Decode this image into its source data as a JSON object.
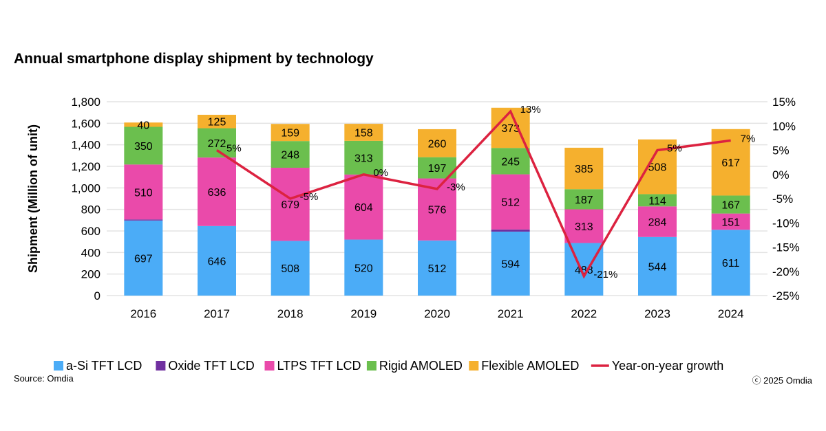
{
  "source": "Source: Omdia",
  "copyright": "ⓒ 2025 Omdia",
  "chart_data": {
    "type": "bar",
    "stacked": true,
    "title": "Annual smartphone display shipment by technology",
    "ylabel": "Shipment (Million of unit)",
    "ylim": [
      0,
      1800
    ],
    "yticks": [
      "0",
      "200",
      "400",
      "600",
      "800",
      "1,000",
      "1,200",
      "1,400",
      "1,600",
      "1,800"
    ],
    "y2lim": [
      -25,
      15
    ],
    "y2ticks": [
      "-25%",
      "-20%",
      "-15%",
      "-10%",
      "-5%",
      "0%",
      "5%",
      "10%",
      "15%"
    ],
    "grid": true,
    "legend": "bottom",
    "categories": [
      "2016",
      "2017",
      "2018",
      "2019",
      "2020",
      "2021",
      "2022",
      "2023",
      "2024"
    ],
    "series": [
      {
        "name": "a-Si TFT LCD",
        "color": "#4BACF7",
        "values": [
          697,
          646,
          508,
          520,
          512,
          594,
          488,
          544,
          611
        ],
        "labels": [
          "697",
          "646",
          "508",
          "520",
          "512",
          "594",
          "488",
          "544",
          "611"
        ]
      },
      {
        "name": "Oxide TFT LCD",
        "color": "#7030A0",
        "values": [
          10,
          0,
          0,
          0,
          0,
          20,
          0,
          0,
          0
        ],
        "labels": [
          null,
          null,
          null,
          null,
          null,
          null,
          null,
          null,
          null
        ]
      },
      {
        "name": "LTPS TFT LCD",
        "color": "#EA4AAA",
        "values": [
          510,
          636,
          679,
          604,
          576,
          512,
          313,
          284,
          151
        ],
        "labels": [
          "510",
          "636",
          "679",
          "604",
          "576",
          "512",
          "313",
          "284",
          "151"
        ]
      },
      {
        "name": "Rigid AMOLED",
        "color": "#6BBF4E",
        "values": [
          350,
          272,
          248,
          313,
          197,
          245,
          187,
          114,
          167
        ],
        "labels": [
          "350",
          "272",
          "248",
          "313",
          "197",
          "245",
          "187",
          "114",
          "167"
        ]
      },
      {
        "name": "Flexible AMOLED",
        "color": "#F5B02E",
        "values": [
          40,
          125,
          159,
          158,
          260,
          373,
          385,
          508,
          617
        ],
        "labels": [
          "40",
          "125",
          "159",
          "158",
          "260",
          "373",
          "385",
          "508",
          "617"
        ]
      }
    ],
    "line": {
      "name": "Year-on-year growth",
      "color": "#DC2240",
      "axis": "right",
      "start_index": 1,
      "values": [
        null,
        5,
        -5,
        0,
        -3,
        13,
        -21,
        5,
        7
      ],
      "labels": [
        null,
        "5%",
        "-5%",
        "0%",
        "-3%",
        "13%",
        "-21%",
        "5%",
        "7%"
      ]
    }
  }
}
